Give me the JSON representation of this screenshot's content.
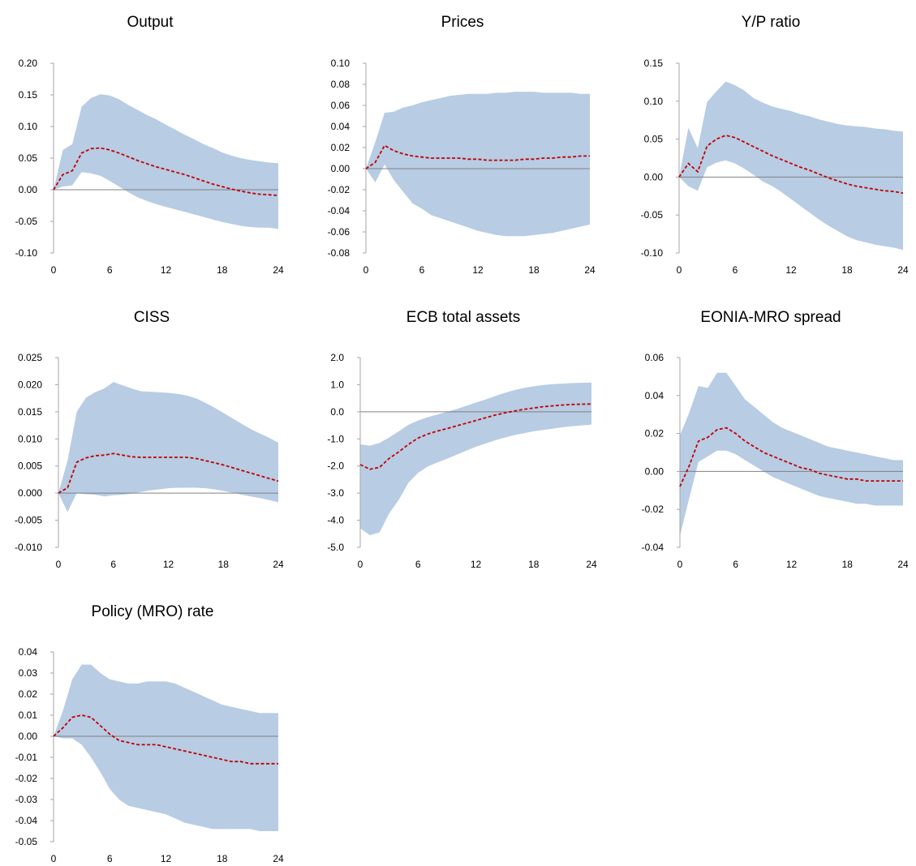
{
  "style": {
    "band_color": "#b8cce4",
    "median_color": "#c00000",
    "zero_line_color": "#808080",
    "axis_color": "#a6a6a6"
  },
  "x_ticks": [
    0,
    6,
    12,
    18,
    24
  ],
  "chart_data": [
    {
      "type": "area",
      "title": "Output",
      "ylim": [
        -0.1,
        0.2
      ],
      "yticks": [
        "0.20",
        "0.15",
        "0.10",
        "0.05",
        "0.00",
        "-0.05",
        "-0.10"
      ],
      "xlim": [
        0,
        24
      ],
      "series": [
        {
          "role": "band_upper",
          "values": [
            0.0,
            0.063,
            0.072,
            0.131,
            0.145,
            0.151,
            0.149,
            0.143,
            0.134,
            0.126,
            0.118,
            0.111,
            0.103,
            0.095,
            0.087,
            0.08,
            0.072,
            0.066,
            0.059,
            0.054,
            0.05,
            0.047,
            0.045,
            0.043,
            0.042
          ]
        },
        {
          "role": "median",
          "values": [
            0.0,
            0.024,
            0.03,
            0.058,
            0.065,
            0.066,
            0.063,
            0.058,
            0.052,
            0.046,
            0.041,
            0.036,
            0.032,
            0.028,
            0.024,
            0.019,
            0.014,
            0.009,
            0.005,
            0.001,
            -0.002,
            -0.005,
            -0.007,
            -0.008,
            -0.009
          ]
        },
        {
          "role": "band_lower",
          "values": [
            0.0,
            0.005,
            0.007,
            0.028,
            0.026,
            0.022,
            0.014,
            0.005,
            -0.004,
            -0.012,
            -0.018,
            -0.023,
            -0.027,
            -0.031,
            -0.035,
            -0.039,
            -0.043,
            -0.047,
            -0.051,
            -0.054,
            -0.057,
            -0.059,
            -0.06,
            -0.06,
            -0.062
          ]
        }
      ]
    },
    {
      "type": "area",
      "title": "Prices",
      "ylim": [
        -0.08,
        0.1
      ],
      "yticks": [
        "0.10",
        "0.08",
        "0.06",
        "0.04",
        "0.02",
        "0.00",
        "-0.02",
        "-0.04",
        "-0.06",
        "-0.08"
      ],
      "xlim": [
        0,
        24
      ],
      "series": [
        {
          "role": "band_upper",
          "values": [
            0.0,
            0.025,
            0.053,
            0.054,
            0.058,
            0.06,
            0.063,
            0.065,
            0.067,
            0.069,
            0.07,
            0.071,
            0.071,
            0.071,
            0.072,
            0.072,
            0.073,
            0.073,
            0.073,
            0.072,
            0.072,
            0.072,
            0.072,
            0.071,
            0.071
          ]
        },
        {
          "role": "median",
          "values": [
            0.0,
            0.006,
            0.022,
            0.017,
            0.014,
            0.012,
            0.011,
            0.01,
            0.01,
            0.01,
            0.01,
            0.009,
            0.009,
            0.008,
            0.008,
            0.008,
            0.008,
            0.009,
            0.009,
            0.01,
            0.01,
            0.011,
            0.011,
            0.012,
            0.012
          ]
        },
        {
          "role": "band_lower",
          "values": [
            0.0,
            -0.013,
            0.004,
            -0.011,
            -0.022,
            -0.033,
            -0.038,
            -0.044,
            -0.047,
            -0.05,
            -0.053,
            -0.056,
            -0.059,
            -0.061,
            -0.063,
            -0.064,
            -0.064,
            -0.064,
            -0.063,
            -0.062,
            -0.061,
            -0.059,
            -0.057,
            -0.055,
            -0.053
          ]
        }
      ]
    },
    {
      "type": "area",
      "title": "Y/P ratio",
      "ylim": [
        -0.1,
        0.15
      ],
      "yticks": [
        "0.15",
        "0.10",
        "0.05",
        "0.00",
        "-0.05",
        "-0.10"
      ],
      "xlim": [
        0,
        24
      ],
      "series": [
        {
          "role": "band_upper",
          "values": [
            0.0,
            0.065,
            0.038,
            0.099,
            0.113,
            0.126,
            0.121,
            0.114,
            0.104,
            0.098,
            0.093,
            0.09,
            0.087,
            0.083,
            0.08,
            0.076,
            0.073,
            0.07,
            0.068,
            0.067,
            0.066,
            0.064,
            0.063,
            0.061,
            0.06
          ]
        },
        {
          "role": "median",
          "values": [
            0.0,
            0.018,
            0.007,
            0.041,
            0.05,
            0.055,
            0.052,
            0.046,
            0.04,
            0.034,
            0.028,
            0.023,
            0.018,
            0.013,
            0.009,
            0.004,
            -0.001,
            -0.005,
            -0.009,
            -0.012,
            -0.014,
            -0.016,
            -0.018,
            -0.019,
            -0.021
          ]
        },
        {
          "role": "band_lower",
          "values": [
            0.0,
            -0.012,
            -0.018,
            0.013,
            0.019,
            0.022,
            0.018,
            0.011,
            0.003,
            -0.006,
            -0.012,
            -0.02,
            -0.029,
            -0.038,
            -0.047,
            -0.056,
            -0.064,
            -0.071,
            -0.078,
            -0.083,
            -0.086,
            -0.089,
            -0.091,
            -0.093,
            -0.096
          ]
        }
      ]
    },
    {
      "type": "area",
      "title": "CISS",
      "ylim": [
        -0.01,
        0.025
      ],
      "yticks": [
        "0.025",
        "0.020",
        "0.015",
        "0.010",
        "0.005",
        "0.000",
        "-0.005",
        "-0.010"
      ],
      "xlim": [
        0,
        24
      ],
      "series": [
        {
          "role": "band_upper",
          "values": [
            0.0,
            0.006,
            0.015,
            0.0176,
            0.0186,
            0.0193,
            0.0205,
            0.0199,
            0.0193,
            0.0188,
            0.0187,
            0.0186,
            0.0185,
            0.0183,
            0.018,
            0.0175,
            0.0167,
            0.0158,
            0.0148,
            0.0138,
            0.0128,
            0.0118,
            0.011,
            0.0102,
            0.0093
          ]
        },
        {
          "role": "median",
          "values": [
            0.0,
            0.001,
            0.0057,
            0.0065,
            0.0069,
            0.007,
            0.0073,
            0.007,
            0.0067,
            0.0066,
            0.0066,
            0.0066,
            0.0066,
            0.0066,
            0.0066,
            0.0064,
            0.006,
            0.0056,
            0.0052,
            0.0047,
            0.0042,
            0.0037,
            0.0032,
            0.0027,
            0.0022
          ]
        },
        {
          "role": "band_lower",
          "values": [
            0.0,
            -0.0035,
            0.0,
            -0.0002,
            -0.0003,
            -0.0006,
            -0.0004,
            -0.0003,
            -0.0001,
            0.0002,
            0.0005,
            0.0007,
            0.0009,
            0.001,
            0.001,
            0.001,
            0.0009,
            0.0007,
            0.0004,
            0.0001,
            -0.0003,
            -0.0006,
            -0.0009,
            -0.0013,
            -0.0017
          ]
        }
      ]
    },
    {
      "type": "area",
      "title": "ECB total assets",
      "ylim": [
        -5.0,
        2.0
      ],
      "yticks": [
        "2.0",
        "1.0",
        "0.0",
        "-1.0",
        "-2.0",
        "-3.0",
        "-4.0",
        "-5.0"
      ],
      "xlim": [
        0,
        24
      ],
      "series": [
        {
          "role": "band_upper",
          "values": [
            -1.2,
            -1.25,
            -1.15,
            -0.95,
            -0.72,
            -0.48,
            -0.32,
            -0.2,
            -0.1,
            0.0,
            0.1,
            0.22,
            0.34,
            0.45,
            0.58,
            0.7,
            0.8,
            0.88,
            0.94,
            0.99,
            1.02,
            1.04,
            1.06,
            1.07,
            1.08
          ]
        },
        {
          "role": "median",
          "values": [
            -1.95,
            -2.12,
            -2.05,
            -1.72,
            -1.48,
            -1.2,
            -0.97,
            -0.82,
            -0.71,
            -0.62,
            -0.52,
            -0.42,
            -0.32,
            -0.22,
            -0.12,
            -0.04,
            0.03,
            0.09,
            0.14,
            0.19,
            0.22,
            0.25,
            0.27,
            0.28,
            0.29
          ]
        },
        {
          "role": "band_lower",
          "values": [
            -4.3,
            -4.55,
            -4.45,
            -3.75,
            -3.25,
            -2.62,
            -2.25,
            -2.02,
            -1.87,
            -1.73,
            -1.58,
            -1.43,
            -1.29,
            -1.17,
            -1.05,
            -0.95,
            -0.86,
            -0.79,
            -0.72,
            -0.67,
            -0.62,
            -0.57,
            -0.53,
            -0.5,
            -0.47
          ]
        }
      ]
    },
    {
      "type": "area",
      "title": "EONIA-MRO spread",
      "ylim": [
        -0.04,
        0.06
      ],
      "yticks": [
        "0.06",
        "0.04",
        "0.02",
        "0.00",
        "-0.02",
        "-0.04"
      ],
      "xlim": [
        0,
        24
      ],
      "series": [
        {
          "role": "band_upper",
          "values": [
            0.019,
            0.031,
            0.045,
            0.044,
            0.052,
            0.052,
            0.045,
            0.038,
            0.034,
            0.03,
            0.026,
            0.023,
            0.021,
            0.019,
            0.017,
            0.015,
            0.013,
            0.012,
            0.011,
            0.01,
            0.009,
            0.008,
            0.007,
            0.006,
            0.006
          ]
        },
        {
          "role": "median",
          "values": [
            -0.008,
            0.003,
            0.016,
            0.018,
            0.022,
            0.023,
            0.02,
            0.016,
            0.013,
            0.01,
            0.008,
            0.006,
            0.004,
            0.002,
            0.001,
            -0.001,
            -0.002,
            -0.003,
            -0.004,
            -0.004,
            -0.005,
            -0.005,
            -0.005,
            -0.005,
            -0.005
          ]
        },
        {
          "role": "band_lower",
          "values": [
            -0.034,
            -0.014,
            0.005,
            0.008,
            0.011,
            0.011,
            0.009,
            0.006,
            0.003,
            0.0,
            -0.003,
            -0.005,
            -0.007,
            -0.009,
            -0.011,
            -0.013,
            -0.014,
            -0.015,
            -0.016,
            -0.017,
            -0.017,
            -0.018,
            -0.018,
            -0.018,
            -0.018
          ]
        }
      ]
    },
    {
      "type": "area",
      "title": "Policy (MRO) rate",
      "ylim": [
        -0.05,
        0.04
      ],
      "yticks": [
        "0.04",
        "0.03",
        "0.02",
        "0.01",
        "0.00",
        "-0.01",
        "-0.02",
        "-0.03",
        "-0.04",
        "-0.05"
      ],
      "xlim": [
        0,
        24
      ],
      "series": [
        {
          "role": "band_upper",
          "values": [
            0.0,
            0.012,
            0.027,
            0.034,
            0.034,
            0.03,
            0.027,
            0.026,
            0.025,
            0.025,
            0.026,
            0.026,
            0.026,
            0.025,
            0.023,
            0.021,
            0.019,
            0.017,
            0.015,
            0.014,
            0.013,
            0.012,
            0.011,
            0.011,
            0.011
          ]
        },
        {
          "role": "median",
          "values": [
            0.0,
            0.004,
            0.009,
            0.01,
            0.009,
            0.005,
            0.001,
            -0.002,
            -0.003,
            -0.004,
            -0.004,
            -0.004,
            -0.005,
            -0.006,
            -0.007,
            -0.008,
            -0.009,
            -0.01,
            -0.011,
            -0.012,
            -0.012,
            -0.013,
            -0.013,
            -0.013,
            -0.013
          ]
        },
        {
          "role": "band_lower",
          "values": [
            0.0,
            -0.001,
            -0.001,
            -0.004,
            -0.01,
            -0.017,
            -0.025,
            -0.03,
            -0.033,
            -0.034,
            -0.035,
            -0.036,
            -0.037,
            -0.039,
            -0.041,
            -0.042,
            -0.043,
            -0.044,
            -0.044,
            -0.044,
            -0.044,
            -0.044,
            -0.045,
            -0.045,
            -0.045
          ]
        }
      ]
    }
  ]
}
